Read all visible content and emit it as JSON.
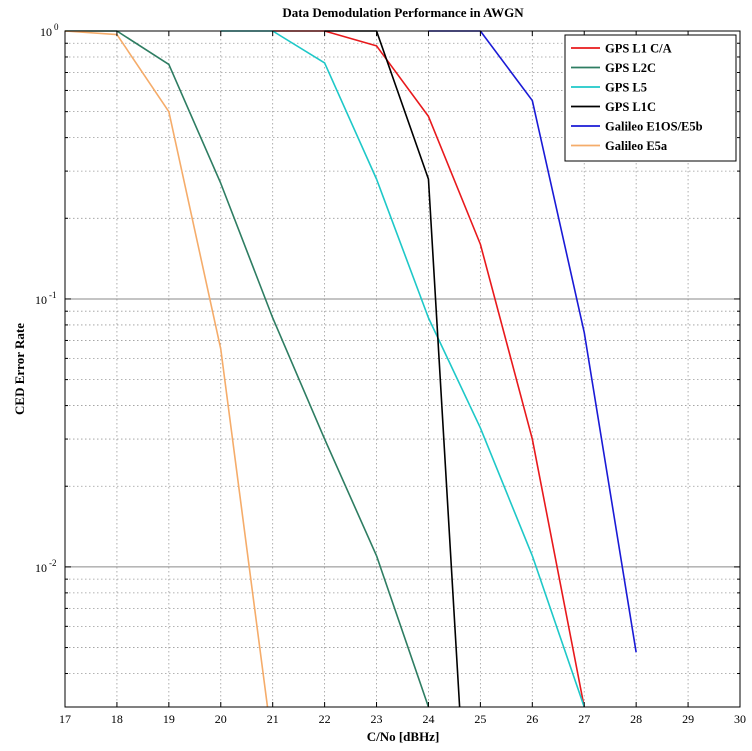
{
  "chart_data": {
    "type": "line",
    "title": "Data Demodulation Performance in AWGN",
    "xlabel": "C/No [dBHz]",
    "ylabel": "CED Error Rate",
    "xlim": [
      17,
      30
    ],
    "ylim": [
      0.003,
      1
    ],
    "yscale": "log",
    "grid": true,
    "legend_position": "top-right",
    "x_ticks": [
      "17",
      "18",
      "19",
      "20",
      "21",
      "22",
      "23",
      "24",
      "25",
      "26",
      "27",
      "28",
      "29",
      "30"
    ],
    "y_ticks": [
      {
        "base": "10",
        "exp": "0",
        "value": 1
      },
      {
        "base": "10",
        "exp": "-1",
        "value": 0.1
      },
      {
        "base": "10",
        "exp": "-2",
        "value": 0.01
      }
    ],
    "series": [
      {
        "name": "GPS L1 C/A",
        "color": "#e8191c",
        "x": [
          21,
          22,
          23,
          24,
          25,
          26,
          27
        ],
        "y": [
          1.0,
          1.0,
          0.88,
          0.48,
          0.16,
          0.03,
          0.003
        ]
      },
      {
        "name": "GPS L2C",
        "color": "#2e7d62",
        "x": [
          17,
          18,
          19,
          20,
          21,
          22,
          23,
          24
        ],
        "y": [
          1.0,
          1.0,
          0.75,
          0.27,
          0.085,
          0.03,
          0.011,
          0.003
        ]
      },
      {
        "name": "GPS L5",
        "color": "#1ec8c8",
        "x": [
          20,
          21,
          22,
          23,
          24,
          25,
          26,
          27
        ],
        "y": [
          1.0,
          1.0,
          0.76,
          0.28,
          0.085,
          0.033,
          0.011,
          0.003
        ]
      },
      {
        "name": "GPS L1C",
        "color": "#000000",
        "x": [
          22,
          23,
          24,
          24.6
        ],
        "y": [
          1.0,
          1.0,
          0.28,
          0.003
        ]
      },
      {
        "name": "Galileo E1OS/E5b",
        "color": "#1a1ad6",
        "x": [
          24,
          25,
          26,
          27,
          28
        ],
        "y": [
          1.0,
          1.0,
          0.55,
          0.075,
          0.0048
        ]
      },
      {
        "name": "Galileo E5a",
        "color": "#f5ac6a",
        "x": [
          17,
          18,
          19,
          20,
          20.9
        ],
        "y": [
          1.0,
          0.97,
          0.5,
          0.065,
          0.003
        ]
      }
    ]
  }
}
